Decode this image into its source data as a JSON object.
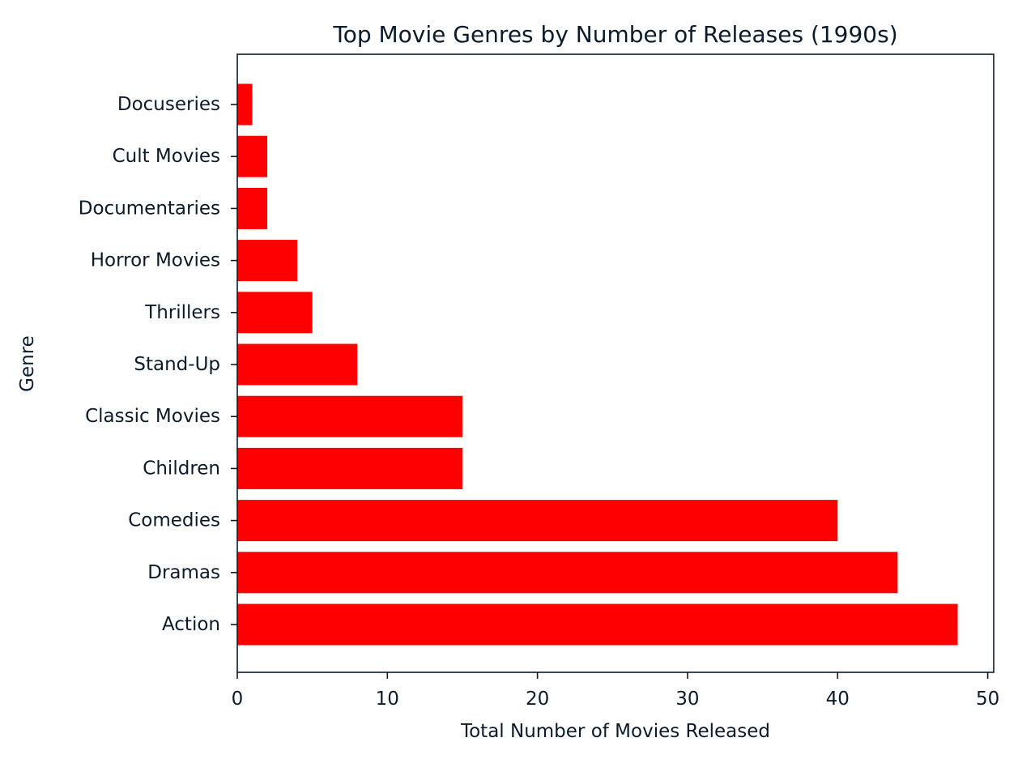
{
  "chart_data": {
    "type": "bar",
    "orientation": "horizontal",
    "title": "Top Movie Genres by Number of Releases (1990s)",
    "xlabel": "Total Number of Movies Released",
    "ylabel": "Genre",
    "categories": [
      "Action",
      "Dramas",
      "Comedies",
      "Children",
      "Classic Movies",
      "Stand-Up",
      "Thrillers",
      "Horror Movies",
      "Documentaries",
      "Cult Movies",
      "Docuseries"
    ],
    "values": [
      48,
      44,
      40,
      15,
      15,
      8,
      5,
      4,
      2,
      2,
      1
    ],
    "xlim": [
      0,
      50.4
    ],
    "xticks": [
      0,
      10,
      20,
      30,
      40,
      50
    ],
    "xtick_labels": [
      "0",
      "10",
      "20",
      "30",
      "40",
      "50"
    ],
    "bar_color": "#ff0000",
    "axis_color": "#0b1b2b",
    "grid": false,
    "legend": "none"
  }
}
